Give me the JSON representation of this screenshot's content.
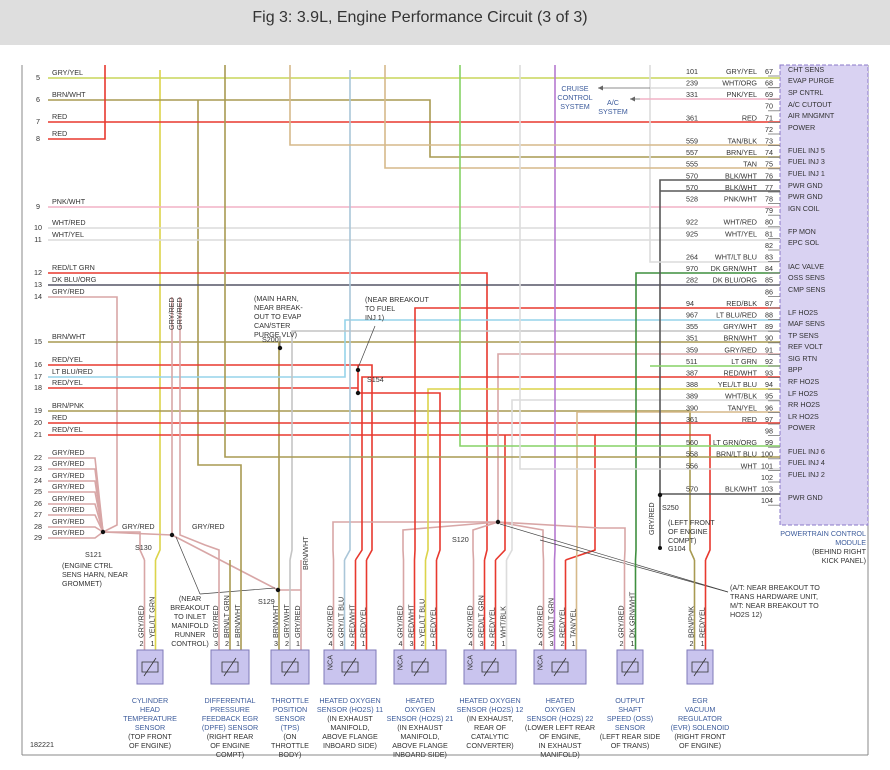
{
  "header": {
    "title": "Fig 3: 3.9L, Engine Performance Circuit (3 of 3)"
  },
  "left_pins": [
    {
      "pin": "5",
      "wire": "GRY/YEL"
    },
    {
      "pin": "6",
      "wire": "BRN/WHT"
    },
    {
      "pin": "7",
      "wire": "RED"
    },
    {
      "pin": "8",
      "wire": "RED"
    },
    {
      "pin": "9",
      "wire": "PNK/WHT"
    },
    {
      "pin": "10",
      "wire": "WHT/RED"
    },
    {
      "pin": "11",
      "wire": "WHT/YEL"
    },
    {
      "pin": "12",
      "wire": "RED/LT GRN"
    },
    {
      "pin": "13",
      "wire": "DK BLU/ORG"
    },
    {
      "pin": "14",
      "wire": "GRY/RED"
    },
    {
      "pin": "15",
      "wire": "BRN/WHT"
    },
    {
      "pin": "16",
      "wire": "RED/YEL"
    },
    {
      "pin": "17",
      "wire": "LT BLU/RED"
    },
    {
      "pin": "18",
      "wire": "RED/YEL"
    },
    {
      "pin": "19",
      "wire": "BRN/PNK"
    },
    {
      "pin": "20",
      "wire": "RED"
    },
    {
      "pin": "21",
      "wire": "RED/YEL"
    },
    {
      "pin": "22",
      "wire": "GRY/RED"
    },
    {
      "pin": "23",
      "wire": "GRY/RED"
    },
    {
      "pin": "24",
      "wire": "GRY/RED"
    },
    {
      "pin": "25",
      "wire": "GRY/RED"
    },
    {
      "pin": "26",
      "wire": "GRY/RED"
    },
    {
      "pin": "27",
      "wire": "GRY/RED"
    },
    {
      "pin": "28",
      "wire": "GRY/RED"
    },
    {
      "pin": "29",
      "wire": "GRY/RED"
    }
  ],
  "pcm_pins": [
    {
      "circuit": "101",
      "wire": "GRY/YEL",
      "pin": "67"
    },
    {
      "circuit": "239",
      "wire": "WHT/ORG",
      "pin": "68"
    },
    {
      "circuit": "331",
      "wire": "PNK/YEL",
      "pin": "69"
    },
    {
      "pin": "70"
    },
    {
      "circuit": "361",
      "wire": "RED",
      "pin": "71"
    },
    {
      "pin": "72"
    },
    {
      "circuit": "559",
      "wire": "TAN/BLK",
      "pin": "73"
    },
    {
      "circuit": "557",
      "wire": "BRN/YEL",
      "pin": "74"
    },
    {
      "circuit": "555",
      "wire": "TAN",
      "pin": "75"
    },
    {
      "circuit": "570",
      "wire": "BLK/WHT",
      "pin": "76"
    },
    {
      "circuit": "570",
      "wire": "BLK/WHT",
      "pin": "77"
    },
    {
      "circuit": "528",
      "wire": "PNK/WHT",
      "pin": "78"
    },
    {
      "pin": "79"
    },
    {
      "circuit": "922",
      "wire": "WHT/RED",
      "pin": "80"
    },
    {
      "circuit": "925",
      "wire": "WHT/YEL",
      "pin": "81"
    },
    {
      "pin": "82"
    },
    {
      "circuit": "264",
      "wire": "WHT/LT BLU",
      "pin": "83"
    },
    {
      "circuit": "970",
      "wire": "DK GRN/WHT",
      "pin": "84"
    },
    {
      "circuit": "282",
      "wire": "DK BLU/ORG",
      "pin": "85"
    },
    {
      "pin": "86"
    },
    {
      "circuit": "94",
      "wire": "RED/BLK",
      "pin": "87"
    },
    {
      "circuit": "967",
      "wire": "LT BLU/RED",
      "pin": "88"
    },
    {
      "circuit": "355",
      "wire": "GRY/WHT",
      "pin": "89"
    },
    {
      "circuit": "351",
      "wire": "BRN/WHT",
      "pin": "90"
    },
    {
      "circuit": "359",
      "wire": "GRY/RED",
      "pin": "91"
    },
    {
      "circuit": "511",
      "wire": "LT GRN",
      "pin": "92"
    },
    {
      "circuit": "387",
      "wire": "RED/WHT",
      "pin": "93"
    },
    {
      "circuit": "388",
      "wire": "YEL/LT BLU",
      "pin": "94"
    },
    {
      "circuit": "389",
      "wire": "WHT/BLK",
      "pin": "95"
    },
    {
      "circuit": "390",
      "wire": "TAN/YEL",
      "pin": "96"
    },
    {
      "circuit": "361",
      "wire": "RED",
      "pin": "97"
    },
    {
      "pin": "98"
    },
    {
      "circuit": "560",
      "wire": "LT GRN/ORG",
      "pin": "99"
    },
    {
      "circuit": "558",
      "wire": "BRN/LT BLU",
      "pin": "100"
    },
    {
      "circuit": "556",
      "wire": "WHT",
      "pin": "101"
    },
    {
      "pin": "102"
    },
    {
      "circuit": "570",
      "wire": "BLK/WHT",
      "pin": "103"
    },
    {
      "pin": "104"
    }
  ],
  "pcm_functions": [
    "CHT SENS",
    "EVAP PURGE",
    "SP CNTRL",
    "A/C CUTOUT",
    "AIR MNGMNT",
    "POWER",
    "FUEL INJ 5",
    "FUEL INJ 3",
    "FUEL INJ 1",
    "PWR GND",
    "PWR GND",
    "IGN COIL",
    "FP MON",
    "EPC SOL",
    "IAC VALVE",
    "OSS SENS",
    "CMP SENS",
    "LF HO2S",
    "MAF SENS",
    "TP SENS",
    "REF VOLT",
    "SIG RTN",
    "BPP",
    "RF HO2S",
    "LF HO2S",
    "RR HO2S",
    "LR HO2S",
    "POWER",
    "FUEL INJ 6",
    "FUEL INJ 4",
    "FUEL INJ 2",
    "PWR GND"
  ],
  "pcm": {
    "name": [
      "POWERTRAIN CONTROL",
      "MODULE"
    ],
    "location": [
      "(BEHIND RIGHT",
      "KICK PANEL)"
    ]
  },
  "systems": [
    [
      "CRUISE",
      "CONTROL",
      "SYSTEM"
    ],
    [
      "A/C",
      "SYSTEM"
    ]
  ],
  "splices": [
    {
      "id": "S200",
      "note": [
        "(MAIN HARN,",
        "NEAR BREAK-",
        "OUT TO EVAP",
        "CAN/STER",
        "PURGE VLV)"
      ]
    },
    {
      "id": "S154",
      "note": [
        "(NEAR BREAKOUT",
        "TO FUEL",
        "INJ 1)"
      ]
    },
    {
      "id": "S121",
      "note": [
        "(ENGINE CTRL",
        "SENS HARN, NEAR",
        "GROMMET)"
      ]
    },
    {
      "id": "S130",
      "note": [
        "(NEAR",
        "BREAKOUT",
        "TO INLET",
        "MANIFOLD",
        "RUNNER",
        "CONTROL)"
      ]
    },
    {
      "id": "S129"
    },
    {
      "id": "S120",
      "note": [
        "(A/T: NEAR BREAKOUT TO",
        "TRANS HARDWARE UNIT,",
        "M/T: NEAR BREAKOUT TO",
        "HO2S 12)"
      ]
    },
    {
      "id": "S250",
      "note": [
        "(LEFT FRONT",
        "OF ENGINE",
        "COMPT)"
      ]
    }
  ],
  "ground": "G104",
  "wire_labels": [
    "GRY/RED",
    "GRY/RED",
    "GRY/RED",
    "GRY/RED",
    "BRN/WHT",
    "GRY/RED"
  ],
  "components": [
    {
      "pins": [
        {
          "pin": "2",
          "wire": "GRY/RED"
        },
        {
          "pin": "1",
          "wire": "YEL/LT GRN"
        }
      ],
      "name": [
        "CYLINDER",
        "HEAD",
        "TEMPERATURE",
        "SENSOR"
      ],
      "location": [
        "(TOP FRONT",
        "OF ENGINE)"
      ]
    },
    {
      "pins": [
        {
          "pin": "3",
          "wire": "GRY/RED"
        },
        {
          "pin": "2",
          "wire": "BRN/LT GRN"
        },
        {
          "pin": "1",
          "wire": "BRN/WHT"
        }
      ],
      "name": [
        "DIFFERENTIAL",
        "PRESSURE",
        "FEEDBACK EGR",
        "(DPFE) SENSOR"
      ],
      "location": [
        "(RIGHT REAR",
        "OF ENGINE",
        "COMPT)"
      ]
    },
    {
      "pins": [
        {
          "pin": "3",
          "wire": "BRN/WHT"
        },
        {
          "pin": "2",
          "wire": "GRY/WHT"
        },
        {
          "pin": "1",
          "wire": "GRY/RED"
        }
      ],
      "name": [
        "THROTTLE",
        "POSITION",
        "SENSOR",
        "(TPS)"
      ],
      "location": [
        "(ON",
        "THROTTLE",
        "BODY)"
      ]
    },
    {
      "nca": "NCA",
      "pins": [
        {
          "pin": "4",
          "wire": "GRY/RED"
        },
        {
          "pin": "3",
          "wire": "GRY/LT BLU"
        },
        {
          "pin": "2",
          "wire": "RED/WHT"
        },
        {
          "pin": "1",
          "wire": "RED/YEL"
        }
      ],
      "name": [
        "HEATED OXYGEN",
        "SENSOR (HO2S) 11"
      ],
      "location": [
        "(IN EXHAUST",
        "MANIFOLD,",
        "ABOVE FLANGE",
        "INBOARD SIDE)"
      ]
    },
    {
      "nca": "NCA",
      "pins": [
        {
          "pin": "4",
          "wire": "GRY/RED"
        },
        {
          "pin": "3",
          "wire": "RED/WHT"
        },
        {
          "pin": "2",
          "wire": "YEL/LT BLU"
        },
        {
          "pin": "1",
          "wire": "RED/YEL"
        }
      ],
      "name": [
        "HEATED",
        "OXYGEN",
        "SENSOR (HO2S) 21"
      ],
      "location": [
        "(IN EXHAUST",
        "MANIFOLD,",
        "ABOVE FLANGE",
        "INBOARD SIDE)"
      ]
    },
    {
      "nca": "NCA",
      "pins": [
        {
          "pin": "4",
          "wire": "GRY/RED"
        },
        {
          "pin": "3",
          "wire": "RED/LT GRN"
        },
        {
          "pin": "2",
          "wire": "RED/YEL"
        },
        {
          "pin": "1",
          "wire": "WHT/BLK"
        }
      ],
      "name": [
        "HEATED OXYGEN",
        "SENSOR (HO2S) 12"
      ],
      "location": [
        "(IN EXHAUST,",
        "REAR OF",
        "CATALYTIC",
        "CONVERTER)"
      ]
    },
    {
      "nca": "NCA",
      "pins": [
        {
          "pin": "4",
          "wire": "GRY/RED"
        },
        {
          "pin": "3",
          "wire": "VIO/LT GRN"
        },
        {
          "pin": "2",
          "wire": "RED/YEL"
        },
        {
          "pin": "1",
          "wire": "TAN/YEL"
        }
      ],
      "name": [
        "HEATED",
        "OXYGEN",
        "SENSOR (HO2S) 22"
      ],
      "location": [
        "(LOWER LEFT REAR",
        "OF ENGINE,",
        "IN EXHAUST",
        "MANIFOLD)"
      ]
    },
    {
      "pins": [
        {
          "pin": "2",
          "wire": "GRY/RED"
        },
        {
          "pin": "1",
          "wire": "DK GRN/WHT"
        }
      ],
      "name": [
        "OUTPUT",
        "SHAFT",
        "SPEED (OSS)",
        "SENSOR"
      ],
      "location": [
        "(LEFT REAR SIDE",
        "OF TRANS)"
      ]
    },
    {
      "pins": [
        {
          "pin": "2",
          "wire": "BRN/PNK"
        },
        {
          "pin": "1",
          "wire": "RED/YEL"
        }
      ],
      "name": [
        "EGR",
        "VACUUM",
        "REGULATOR",
        "(EVR) SOLENOID"
      ],
      "location": [
        "(RIGHT FRONT",
        "OF ENGINE)"
      ]
    }
  ],
  "figure_id": "182221",
  "wire_colors": {
    "GRY/YEL": "#c9d65a",
    "GRY/RED": "#d8a6a6",
    "GRY/WHT": "#c4c4c4",
    "GRY/LT BLU": "#aac6d8",
    "RED": "#e8392f",
    "BRN": "#a89a52",
    "PNK": "#f2b2c6",
    "WHT": "#dcdcdc",
    "YEL": "#dcd44a",
    "LT BLU": "#96d4ea",
    "DK GRN": "#3f8f3f",
    "DK BLU": "#555566",
    "TAN": "#d6b98a",
    "BLK": "#585858",
    "VIO": "#b57ad0",
    "LT GRN": "#86d266"
  }
}
